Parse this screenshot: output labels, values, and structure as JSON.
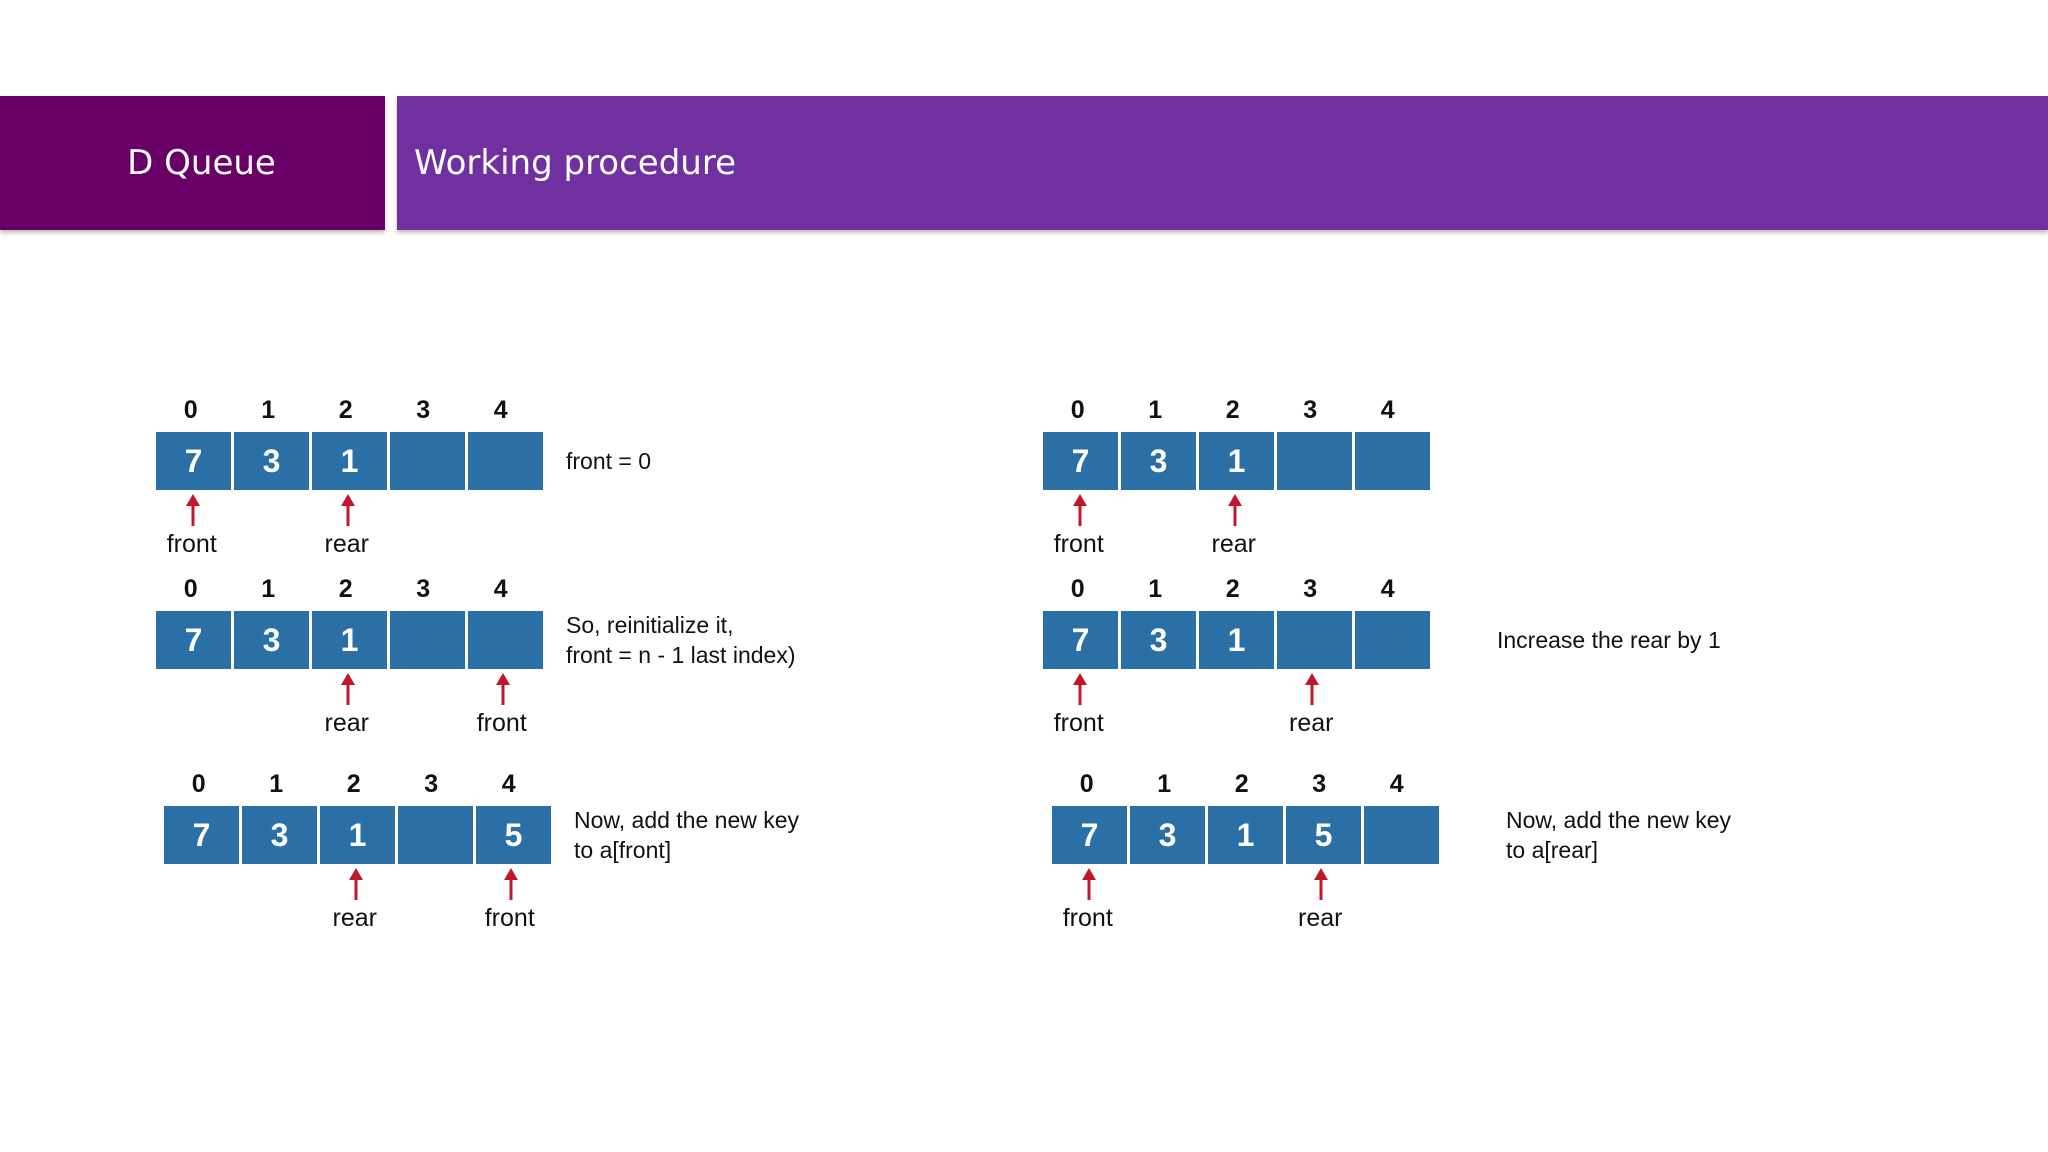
{
  "header": {
    "section_label": "D Queue",
    "title": "Working procedure"
  },
  "colors": {
    "section_bg": "#680068",
    "title_bg": "#7030a0",
    "cell_bg": "#2a6fa6",
    "arrow": "#c0182a"
  },
  "panels": [
    {
      "indices": [
        "0",
        "1",
        "2",
        "3",
        "4"
      ],
      "cells": [
        "7",
        "3",
        "1",
        "",
        ""
      ],
      "pointers": [
        {
          "label": "front",
          "at": 0
        },
        {
          "label": "rear",
          "at": 2
        }
      ],
      "note": [
        "front = 0"
      ]
    },
    {
      "indices": [
        "0",
        "1",
        "2",
        "3",
        "4"
      ],
      "cells": [
        "7",
        "3",
        "1",
        "",
        ""
      ],
      "pointers": [
        {
          "label": "rear",
          "at": 2
        },
        {
          "label": "front",
          "at": 4
        }
      ],
      "note": [
        "So, reinitialize it,",
        "front = n - 1 last index)"
      ]
    },
    {
      "indices": [
        "0",
        "1",
        "2",
        "3",
        "4"
      ],
      "cells": [
        "7",
        "3",
        "1",
        "",
        "5"
      ],
      "pointers": [
        {
          "label": "rear",
          "at": 2
        },
        {
          "label": "front",
          "at": 4
        }
      ],
      "note": [
        "Now, add the new key",
        "to a[front]"
      ]
    },
    {
      "indices": [
        "0",
        "1",
        "2",
        "3",
        "4"
      ],
      "cells": [
        "7",
        "3",
        "1",
        "",
        ""
      ],
      "pointers": [
        {
          "label": "front",
          "at": 0
        },
        {
          "label": "rear",
          "at": 2
        }
      ],
      "note": []
    },
    {
      "indices": [
        "0",
        "1",
        "2",
        "3",
        "4"
      ],
      "cells": [
        "7",
        "3",
        "1",
        "",
        ""
      ],
      "pointers": [
        {
          "label": "front",
          "at": 0
        },
        {
          "label": "rear",
          "at": 3
        }
      ],
      "note": [
        "Increase the rear by 1"
      ]
    },
    {
      "indices": [
        "0",
        "1",
        "2",
        "3",
        "4"
      ],
      "cells": [
        "7",
        "3",
        "1",
        "5",
        ""
      ],
      "pointers": [
        {
          "label": "front",
          "at": 0
        },
        {
          "label": "rear",
          "at": 3
        }
      ],
      "note": [
        "Now, add the new key",
        "to a[rear]"
      ]
    }
  ]
}
